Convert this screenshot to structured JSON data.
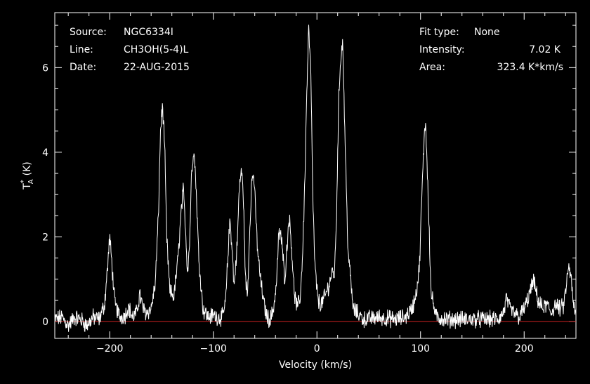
{
  "info": {
    "source_label": "Source:",
    "source_value": "NGC6334I",
    "line_label": "Line:",
    "line_value": "CH3OH(5-4)L",
    "date_label": "Date:",
    "date_value": "22-AUG-2015",
    "fit_label": "Fit type:",
    "fit_value": "None",
    "intensity_label": "Intensity:",
    "intensity_value": "7.02 K",
    "area_label": "Area:",
    "area_value": "323.4 K*km/s"
  },
  "colors": {
    "background": "#000000",
    "axes": "#ffffff",
    "spectrum": "#ffffff",
    "baseline": "#cc2222"
  },
  "chart_data": {
    "type": "line",
    "xlabel": "Velocity (km/s)",
    "ylabel_main": "T",
    "ylabel_sup": "*",
    "ylabel_sub": "A",
    "ylabel_unit": "(K)",
    "xlim": [
      -253,
      250
    ],
    "ylim": [
      -0.4,
      7.3
    ],
    "xticks": [
      -200,
      -100,
      0,
      100,
      200
    ],
    "xtick_labels": [
      "−200",
      "−100",
      "0",
      "100",
      "200"
    ],
    "yticks": [
      0,
      2,
      4,
      6
    ],
    "ytick_labels": [
      "0",
      "2",
      "4",
      "6"
    ],
    "baseline_y": 0,
    "grid": false,
    "series": [
      {
        "x": [
          -253,
          -246,
          -240,
          -234,
          -228,
          -222,
          -216,
          -210,
          -205,
          -202,
          -200,
          -198,
          -195,
          -190,
          -185,
          -182,
          -178,
          -174,
          -171,
          -168,
          -165,
          -160,
          -156,
          -153,
          -151,
          -149,
          -147,
          -145,
          -142,
          -138,
          -134,
          -131,
          -129,
          -127,
          -125,
          -123,
          -121,
          -119,
          -117,
          -114,
          -110,
          -105,
          -100,
          -95,
          -91,
          -88,
          -86,
          -84,
          -82,
          -80,
          -77,
          -75,
          -73,
          -71,
          -69,
          -67,
          -65,
          -63,
          -61,
          -59,
          -57,
          -54,
          -51,
          -48,
          -45,
          -42,
          -39,
          -37,
          -35,
          -33,
          -31,
          -29,
          -27,
          -25,
          -22,
          -19,
          -16,
          -14,
          -12,
          -10,
          -8,
          -6,
          -4,
          -2,
          1,
          4,
          8,
          12,
          15,
          17,
          19,
          21,
          23,
          25,
          27,
          30,
          35,
          45,
          60,
          75,
          85,
          92,
          96,
          99,
          101,
          103,
          104,
          105,
          106,
          108,
          110,
          115,
          125,
          140,
          160,
          175,
          180,
          183,
          186,
          190,
          195,
          200,
          204,
          207,
          209,
          211,
          214,
          218,
          222,
          226,
          230,
          234,
          238,
          241,
          243,
          245,
          247,
          250
        ],
        "values": [
          0.05,
          0.1,
          -0.1,
          0.1,
          0.05,
          -0.1,
          0.1,
          0.05,
          0.4,
          1.3,
          2.0,
          1.4,
          0.4,
          0.1,
          0.15,
          0.35,
          0.1,
          0.2,
          0.65,
          0.3,
          0.2,
          0.3,
          0.9,
          2.5,
          4.5,
          5.1,
          4.2,
          2.0,
          0.7,
          0.6,
          1.5,
          2.6,
          3.1,
          2.3,
          1.2,
          1.8,
          3.5,
          4.1,
          3.4,
          1.5,
          0.3,
          0.1,
          0.15,
          0.1,
          0.1,
          0.5,
          1.5,
          2.4,
          1.8,
          0.8,
          1.8,
          3.1,
          3.6,
          3.0,
          1.0,
          0.6,
          2.1,
          3.3,
          3.5,
          2.5,
          1.6,
          0.9,
          0.4,
          0.1,
          0.05,
          0.3,
          0.9,
          2.0,
          2.1,
          1.6,
          1.0,
          1.7,
          2.5,
          2.0,
          0.7,
          0.3,
          0.6,
          1.5,
          3.0,
          5.2,
          6.9,
          6.0,
          3.0,
          1.3,
          0.5,
          0.4,
          0.6,
          0.9,
          1.2,
          1.1,
          2.6,
          5.2,
          6.3,
          6.6,
          4.4,
          1.7,
          0.3,
          0.05,
          0.1,
          0.05,
          0.1,
          0.3,
          0.7,
          1.3,
          2.8,
          4.0,
          4.7,
          4.6,
          4.0,
          2.5,
          0.7,
          0.1,
          0.05,
          0.05,
          0.05,
          0.05,
          0.2,
          0.55,
          0.3,
          0.2,
          0.1,
          0.3,
          0.55,
          0.8,
          0.95,
          0.75,
          0.45,
          0.3,
          0.4,
          0.2,
          0.4,
          0.3,
          0.35,
          0.9,
          1.3,
          1.1,
          0.5,
          0.1
        ]
      }
    ]
  }
}
